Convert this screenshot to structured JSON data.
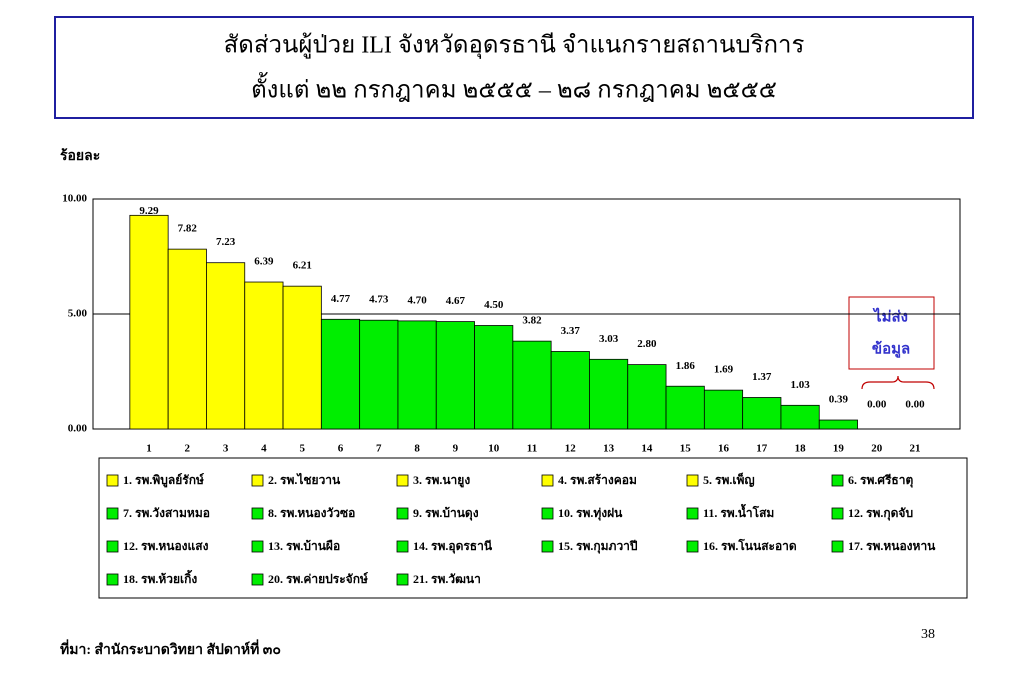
{
  "chart_data": {
    "type": "bar",
    "title": [
      "สัดส่วนผู้ป่วย ILI  จังหวัดอุดรธานี  จำแนกรายสถานบริการ",
      "ตั้งแต่ ๒๒ กรกฎาคม ๒๕๕๕ – ๒๘ กรกฎาคม ๒๕๕๕"
    ],
    "y_label": "ร้อยละ",
    "categories": [
      "1",
      "2",
      "3",
      "4",
      "5",
      "6",
      "7",
      "8",
      "9",
      "10",
      "11",
      "12",
      "13",
      "14",
      "15",
      "16",
      "17",
      "18",
      "19",
      "20",
      "21"
    ],
    "values": [
      9.29,
      7.82,
      7.23,
      6.39,
      6.21,
      4.77,
      4.73,
      4.7,
      4.67,
      4.5,
      3.82,
      3.37,
      3.03,
      2.8,
      1.86,
      1.69,
      1.37,
      1.03,
      0.39,
      0,
      0
    ],
    "value_labels": [
      "9.29",
      "7.82",
      "7.23",
      "6.39",
      "6.21",
      "4.77",
      "4.73",
      "4.70",
      "4.67",
      "4.50",
      "3.82",
      "3.37",
      "3.03",
      "2.80",
      "1.86",
      "1.69",
      "1.37",
      "1.03",
      "0.39",
      "0.00",
      "0.00"
    ],
    "colors": [
      "#ffff00",
      "#ffff00",
      "#ffff00",
      "#ffff00",
      "#ffff00",
      "#00ee00",
      "#00ee00",
      "#00ee00",
      "#00ee00",
      "#00ee00",
      "#00ee00",
      "#00ee00",
      "#00ee00",
      "#00ee00",
      "#00ee00",
      "#00ee00",
      "#00ee00",
      "#00ee00",
      "#00ee00",
      "#00ee00",
      "#00ee00"
    ],
    "ylim": [
      0,
      10
    ],
    "yticks": [
      {
        "value": 0,
        "label": "0.00"
      },
      {
        "value": 5,
        "label": "5.00"
      },
      {
        "value": 10,
        "label": "10.00"
      }
    ],
    "grid": true,
    "legend": [
      {
        "name": "1. รพ.พิบูลย์รักษ์",
        "color": "#ffff00"
      },
      {
        "name": "2. รพ.ไชยวาน",
        "color": "#ffff00"
      },
      {
        "name": "3. รพ.นายูง",
        "color": "#ffff00"
      },
      {
        "name": "4. รพ.สร้างคอม",
        "color": "#ffff00"
      },
      {
        "name": "5. รพ.เพ็ญ",
        "color": "#ffff00"
      },
      {
        "name": "6. รพ.ศรีธาตุ",
        "color": "#00ee00"
      },
      {
        "name": "7. รพ.วังสามหมอ",
        "color": "#00ee00"
      },
      {
        "name": "8. รพ.หนองวัวซอ",
        "color": "#00ee00"
      },
      {
        "name": "9. รพ.บ้านดุง",
        "color": "#00ee00"
      },
      {
        "name": "10. รพ.ทุ่งฝน",
        "color": "#00ee00"
      },
      {
        "name": "11. รพ.น้ำโสม",
        "color": "#00ee00"
      },
      {
        "name": "12. รพ.กุดจับ",
        "color": "#00ee00"
      },
      {
        "name": "12. รพ.หนองแสง",
        "color": "#00ee00"
      },
      {
        "name": "13. รพ.บ้านผือ",
        "color": "#00ee00"
      },
      {
        "name": "14. รพ.อุดรธานี",
        "color": "#00ee00"
      },
      {
        "name": "15. รพ.กุมภวาปี",
        "color": "#00ee00"
      },
      {
        "name": "16. รพ.โนนสะอาด",
        "color": "#00ee00"
      },
      {
        "name": "17. รพ.หนองหาน",
        "color": "#00ee00"
      },
      {
        "name": "18. รพ.ห้วยเกิ้ง",
        "color": "#00ee00"
      },
      {
        "name": "20. รพ.ค่ายประจักษ์",
        "color": "#00ee00"
      },
      {
        "name": "21. รพ.วัฒนา",
        "color": "#00ee00"
      }
    ],
    "annotation": [
      "ไม่ส่ง",
      "ข้อมูล"
    ],
    "source": "ที่มา: สำนักระบาดวิทยา สัปดาห์ที่ ๓๐",
    "page_number": "38"
  }
}
